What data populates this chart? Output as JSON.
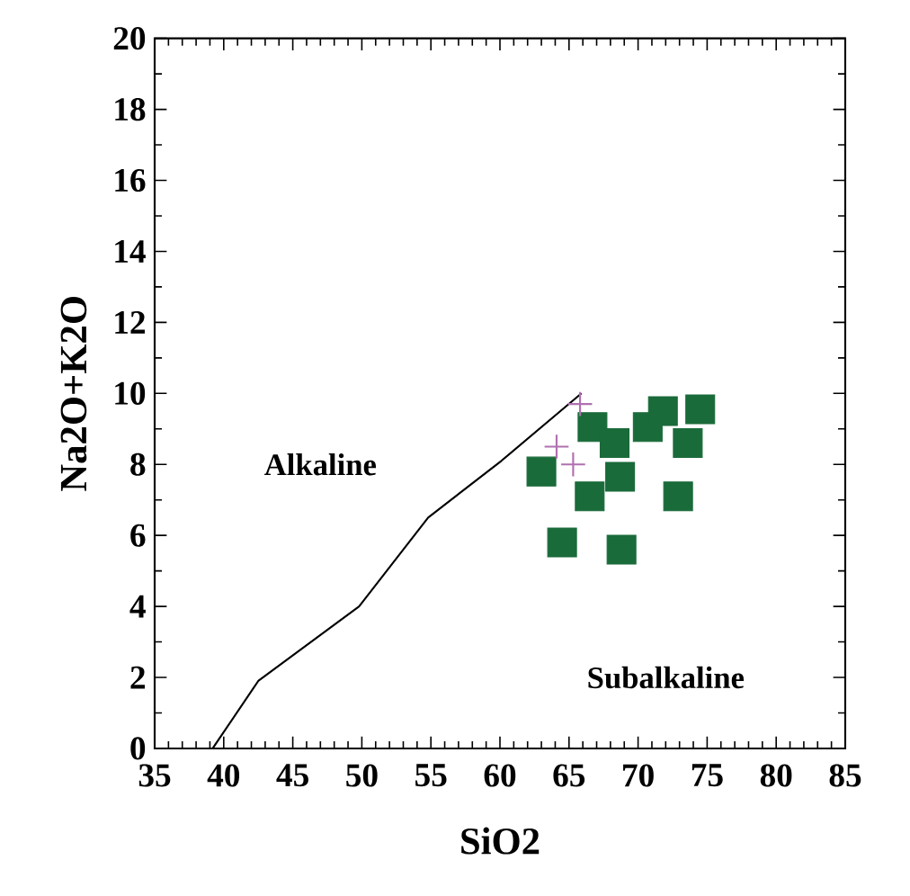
{
  "chart_data": {
    "type": "scatter",
    "xlabel": "SiO2",
    "ylabel": "Na2O+K2O",
    "xlim": [
      35,
      85
    ],
    "ylim": [
      0,
      20
    ],
    "xticks": [
      35,
      40,
      45,
      50,
      55,
      60,
      65,
      70,
      75,
      80,
      85
    ],
    "yticks": [
      0,
      2,
      4,
      6,
      8,
      10,
      12,
      14,
      16,
      18,
      20
    ],
    "grid": false,
    "annotations": [
      "Alkaline",
      "Subalkaline"
    ],
    "series": [
      {
        "type": "line",
        "color": "#000000",
        "marker": "none",
        "line_style": "solid",
        "x": [
          39.2,
          42.5,
          49.8,
          54.8,
          60.1,
          65.9
        ],
        "values": [
          0,
          1.9,
          4.0,
          6.5,
          8.1,
          10.0
        ]
      },
      {
        "color": "#1a6b3a",
        "marker": "square",
        "x": [
          63.0,
          64.5,
          66.7,
          66.5,
          68.3,
          68.7,
          68.8,
          70.7,
          71.8,
          72.9,
          73.6,
          74.5
        ],
        "values": [
          7.8,
          5.8,
          9.05,
          7.1,
          8.6,
          7.65,
          5.6,
          9.05,
          9.5,
          7.1,
          8.6,
          9.55
        ]
      },
      {
        "color": "#b070b0",
        "marker": "cross",
        "x": [
          64.1,
          65.3,
          65.8
        ],
        "values": [
          8.5,
          8.0,
          9.7
        ]
      }
    ]
  }
}
